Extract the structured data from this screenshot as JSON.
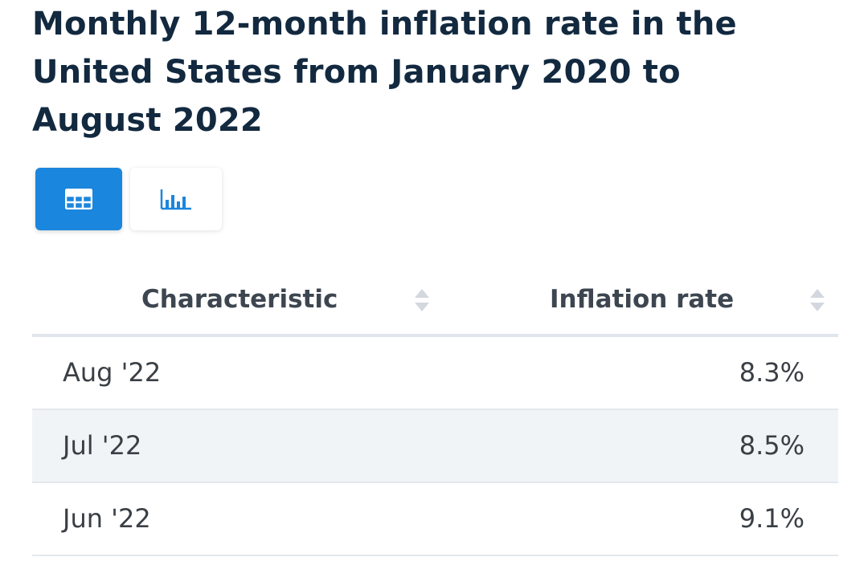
{
  "title": "Monthly 12-month inflation rate in the United States from January 2020 to August 2022",
  "view_toggle": {
    "active": "table",
    "icons": [
      "table-icon",
      "bar-chart-icon"
    ]
  },
  "colors": {
    "accent": "#1b86dd",
    "title": "#12293f",
    "header_text": "#3d4650",
    "row_alt": "#f1f4f7"
  },
  "table": {
    "headers": [
      "Characteristic",
      "Inflation rate"
    ],
    "rows": [
      {
        "label": "Aug '22",
        "value": "8.3%"
      },
      {
        "label": "Jul '22",
        "value": "8.5%"
      },
      {
        "label": "Jun '22",
        "value": "9.1%"
      }
    ]
  }
}
